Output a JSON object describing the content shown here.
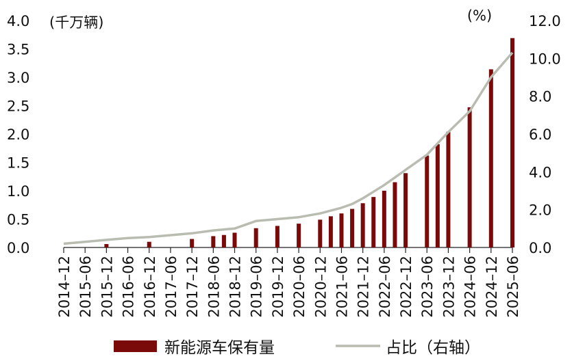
{
  "chart_data": {
    "type": "bar+line",
    "left_unit": "(千万辆)",
    "right_unit": "(%)",
    "x_tick_labels": [
      "2014–12",
      "2015–06",
      "2015–12",
      "2016–06",
      "2016–12",
      "2017–06",
      "2017–12",
      "2018–06",
      "2018–12",
      "2019–06",
      "2019–12",
      "2020–06",
      "2020–12",
      "2021–06",
      "2021–12",
      "2022–06",
      "2022–12",
      "2023–06",
      "2023–12",
      "2024–06",
      "2024–12",
      "2025–06"
    ],
    "y_left": {
      "min": 0,
      "max": 4.0,
      "ticks": [
        "0.0",
        "0.5",
        "1.0",
        "1.5",
        "2.0",
        "2.5",
        "3.0",
        "3.5",
        "4.0"
      ]
    },
    "y_right": {
      "min": 0,
      "max": 12.0,
      "ticks": [
        "0.0",
        "2.0",
        "4.0",
        "6.0",
        "8.0",
        "10.0",
        "12.0"
      ]
    },
    "series": [
      {
        "name": "新能源车保有量",
        "type": "bar",
        "axis": "left",
        "color": "#7a0a0a",
        "points": [
          {
            "x": "2015-12",
            "y": 0.06
          },
          {
            "x": "2016-12",
            "y": 0.1
          },
          {
            "x": "2017-12",
            "y": 0.15
          },
          {
            "x": "2018-06",
            "y": 0.2
          },
          {
            "x": "2018-09",
            "y": 0.22
          },
          {
            "x": "2018-12",
            "y": 0.26
          },
          {
            "x": "2019-06",
            "y": 0.34
          },
          {
            "x": "2019-12",
            "y": 0.38
          },
          {
            "x": "2020-06",
            "y": 0.42
          },
          {
            "x": "2020-12",
            "y": 0.49
          },
          {
            "x": "2021-03",
            "y": 0.55
          },
          {
            "x": "2021-06",
            "y": 0.6
          },
          {
            "x": "2021-09",
            "y": 0.68
          },
          {
            "x": "2021-12",
            "y": 0.78
          },
          {
            "x": "2022-03",
            "y": 0.89
          },
          {
            "x": "2022-06",
            "y": 1.0
          },
          {
            "x": "2022-09",
            "y": 1.15
          },
          {
            "x": "2022-12",
            "y": 1.31
          },
          {
            "x": "2023-06",
            "y": 1.62
          },
          {
            "x": "2023-09",
            "y": 1.82
          },
          {
            "x": "2023-12",
            "y": 2.04
          },
          {
            "x": "2024-06",
            "y": 2.47
          },
          {
            "x": "2024-12",
            "y": 3.14
          },
          {
            "x": "2025-06",
            "y": 3.69
          }
        ]
      },
      {
        "name": "占比（右轴）",
        "type": "line",
        "axis": "right",
        "color": "#b9bcb0",
        "points": [
          {
            "x": "2014-12",
            "y": 0.2
          },
          {
            "x": "2015-06",
            "y": 0.3
          },
          {
            "x": "2015-12",
            "y": 0.4
          },
          {
            "x": "2016-06",
            "y": 0.5
          },
          {
            "x": "2016-12",
            "y": 0.55
          },
          {
            "x": "2017-06",
            "y": 0.65
          },
          {
            "x": "2017-12",
            "y": 0.75
          },
          {
            "x": "2018-06",
            "y": 0.9
          },
          {
            "x": "2018-12",
            "y": 1.0
          },
          {
            "x": "2019-06",
            "y": 1.4
          },
          {
            "x": "2019-12",
            "y": 1.5
          },
          {
            "x": "2020-06",
            "y": 1.6
          },
          {
            "x": "2020-12",
            "y": 1.8
          },
          {
            "x": "2021-06",
            "y": 2.1
          },
          {
            "x": "2021-09",
            "y": 2.3
          },
          {
            "x": "2021-12",
            "y": 2.6
          },
          {
            "x": "2022-06",
            "y": 3.3
          },
          {
            "x": "2022-12",
            "y": 4.1
          },
          {
            "x": "2023-06",
            "y": 4.9
          },
          {
            "x": "2023-12",
            "y": 6.1
          },
          {
            "x": "2024-06",
            "y": 7.2
          },
          {
            "x": "2024-12",
            "y": 9.0
          },
          {
            "x": "2025-06",
            "y": 10.3
          }
        ]
      }
    ],
    "legend": {
      "position": "bottom"
    },
    "grid": false
  }
}
